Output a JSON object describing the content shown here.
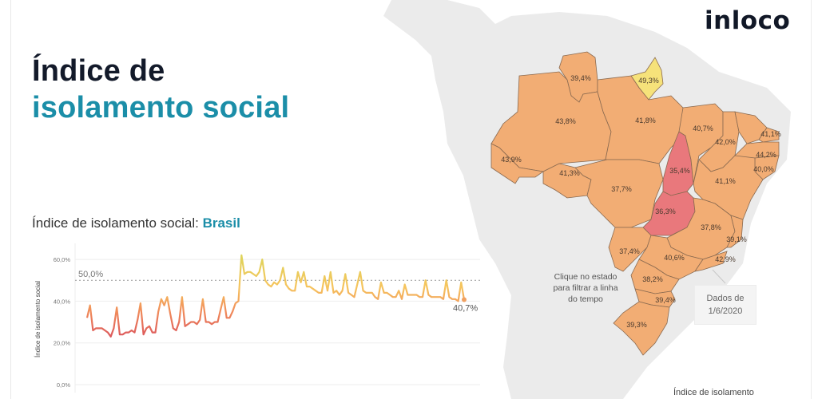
{
  "header": {
    "title_line1": "Índice de",
    "title_line2": "isolamento social",
    "logo": "inloco"
  },
  "chart_section": {
    "heading_prefix": "Índice de isolamento social: ",
    "heading_region": "Brasil",
    "reference_label": "50,0%",
    "last_value_label": "40,7%",
    "ylabel": "Índice de isolamento social"
  },
  "map_section": {
    "hint": "Clique no estado para filtrar a linha do tempo",
    "date_label_line1": "Dados de",
    "date_label_line2": "1/6/2020",
    "legend_title": "Índice de isolamento"
  },
  "colors": {
    "accent": "#1b8ea8",
    "title_dark": "#131a2a",
    "state_orange": "#f2ad74",
    "state_yellow": "#f6e27a",
    "state_red": "#e9787c",
    "land_gray": "#ebebeb",
    "border": "#8a6a50"
  },
  "chart_data": {
    "type": "line",
    "title": "Índice de isolamento social: Brasil",
    "xlabel": "",
    "ylabel": "Índice de isolamento social",
    "ylim": [
      0,
      65
    ],
    "yticks": [
      "0,0%",
      "20,0%",
      "40,0%",
      "60,0%"
    ],
    "reference_line": {
      "value": 50.0,
      "label": "50,0%",
      "style": "dotted"
    },
    "grid": true,
    "annotation": {
      "label": "40,7%",
      "position": "last point"
    },
    "series": [
      {
        "name": "Brasil",
        "values": [
          32,
          38,
          26,
          27,
          27,
          27,
          26,
          25,
          23,
          27,
          37,
          24,
          24,
          25,
          25,
          26,
          25,
          31,
          39,
          24,
          27,
          28,
          25,
          25,
          35,
          41,
          38,
          42,
          34,
          27,
          26,
          30,
          42,
          28,
          29,
          30,
          30,
          29,
          31,
          41,
          30,
          30,
          29,
          30,
          30,
          36,
          42,
          32,
          32,
          35,
          39,
          40,
          62,
          53,
          54,
          54,
          53,
          52,
          54,
          60,
          50,
          48,
          47,
          49,
          48,
          50,
          56,
          48,
          46,
          45,
          45,
          54,
          49,
          54,
          47,
          47,
          46,
          45,
          44,
          44,
          52,
          45,
          54,
          44,
          45,
          43,
          45,
          53,
          44,
          43,
          42,
          48,
          54,
          45,
          44,
          44,
          44,
          42,
          41,
          49,
          44,
          44,
          43,
          42,
          42,
          45,
          41,
          48,
          43,
          43,
          43,
          43,
          42,
          42,
          50,
          43,
          42,
          42,
          42,
          42,
          41,
          50,
          42,
          41,
          41,
          40,
          49,
          40.7
        ]
      }
    ]
  },
  "states": [
    {
      "code": "RR",
      "value": "39,4%",
      "color": "orange"
    },
    {
      "code": "AP",
      "value": "49,3%",
      "color": "yellow"
    },
    {
      "code": "AM",
      "value": "43,8%",
      "color": "orange"
    },
    {
      "code": "PA",
      "value": "41,8%",
      "color": "orange"
    },
    {
      "code": "AC",
      "value": "43,9%",
      "color": "orange"
    },
    {
      "code": "RO",
      "value": "41,3%",
      "color": "orange"
    },
    {
      "code": "MT",
      "value": "37,7%",
      "color": "orange"
    },
    {
      "code": "TO",
      "value": "35,4%",
      "color": "red"
    },
    {
      "code": "MA",
      "value": "40,7%",
      "color": "orange"
    },
    {
      "code": "PI",
      "value": "42,0%",
      "color": "orange"
    },
    {
      "code": "RN",
      "value": "41,1%",
      "color": "orange"
    },
    {
      "code": "PB/PE",
      "value": "44,2%",
      "color": "orange"
    },
    {
      "code": "AL/SE",
      "value": "40,0%",
      "color": "orange"
    },
    {
      "code": "BA",
      "value": "41,1%",
      "color": "orange"
    },
    {
      "code": "GO",
      "value": "36,3%",
      "color": "red"
    },
    {
      "code": "MG",
      "value": "37,8%",
      "color": "orange"
    },
    {
      "code": "ES",
      "value": "39,1%",
      "color": "orange"
    },
    {
      "code": "MS",
      "value": "37,4%",
      "color": "orange"
    },
    {
      "code": "SP",
      "value": "40,6%",
      "color": "orange"
    },
    {
      "code": "RJ",
      "value": "42,9%",
      "color": "orange"
    },
    {
      "code": "PR",
      "value": "38,2%",
      "color": "orange"
    },
    {
      "code": "SC",
      "value": "39,4%",
      "color": "orange"
    },
    {
      "code": "RS",
      "value": "39,3%",
      "color": "orange"
    }
  ]
}
